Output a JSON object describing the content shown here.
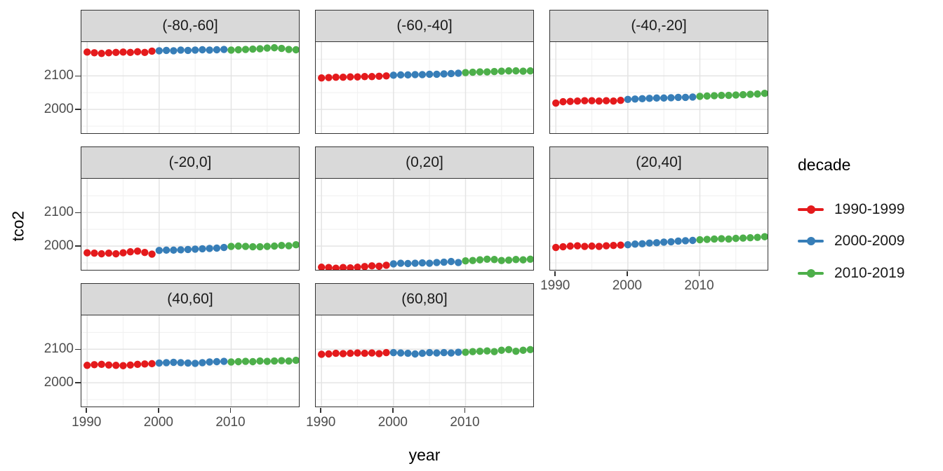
{
  "figure": {
    "x_axis_title": "year",
    "y_axis_title": "tco2",
    "x_tick_labels": [
      "1990",
      "2000",
      "2010"
    ],
    "y_tick_labels": [
      "2100",
      "2000"
    ]
  },
  "legend": {
    "title": "decade",
    "items": [
      {
        "label": "1990-1999",
        "color": "#E41A1C"
      },
      {
        "label": "2000-2009",
        "color": "#377EB8"
      },
      {
        "label": "2010-2019",
        "color": "#4DAF4A"
      }
    ]
  },
  "chart_data": {
    "type": "scatter",
    "title": "",
    "xlabel": "year",
    "ylabel": "tco2",
    "faceted_by": "latitude band",
    "legend_position": "right",
    "grid": true,
    "xlim": [
      1989.2,
      2019.6
    ],
    "ylim": [
      1925,
      2201
    ],
    "x_major_gridlines": [
      1990,
      2000,
      2010
    ],
    "x_minor_gridlines": [
      1995,
      2005,
      2015
    ],
    "y_major_gridlines": [
      2000,
      2100
    ],
    "y_minor_gridlines": [
      1950,
      2050,
      2150
    ],
    "x_tick_values": [
      1990,
      2000,
      2010
    ],
    "y_tick_values": [
      2100,
      2000
    ],
    "series_colors": {
      "1990-1999": "#E41A1C",
      "2000-2009": "#377EB8",
      "2010-2019": "#4DAF4A"
    },
    "years": [
      1990,
      1991,
      1992,
      1993,
      1994,
      1995,
      1996,
      1997,
      1998,
      1999,
      2000,
      2001,
      2002,
      2003,
      2004,
      2005,
      2006,
      2007,
      2008,
      2009,
      2010,
      2011,
      2012,
      2013,
      2014,
      2015,
      2016,
      2017,
      2018,
      2019
    ],
    "facets": [
      {
        "label": "(-80,-60]",
        "values": [
          2171,
          2169,
          2167,
          2169,
          2170,
          2171,
          2170,
          2172,
          2170,
          2174,
          2175,
          2176,
          2175,
          2177,
          2176,
          2177,
          2178,
          2177,
          2178,
          2179,
          2177,
          2178,
          2179,
          2180,
          2181,
          2183,
          2184,
          2182,
          2179,
          2178
        ]
      },
      {
        "label": "(-60,-40]",
        "values": [
          2094,
          2095,
          2096,
          2096,
          2097,
          2097,
          2098,
          2098,
          2099,
          2100,
          2102,
          2103,
          2103,
          2104,
          2104,
          2105,
          2105,
          2106,
          2107,
          2108,
          2110,
          2111,
          2112,
          2112,
          2113,
          2114,
          2115,
          2115,
          2114,
          2115
        ]
      },
      {
        "label": "(-40,-20]",
        "values": [
          2019,
          2023,
          2024,
          2025,
          2026,
          2026,
          2025,
          2026,
          2025,
          2027,
          2030,
          2031,
          2032,
          2033,
          2034,
          2034,
          2035,
          2036,
          2036,
          2037,
          2039,
          2040,
          2041,
          2042,
          2042,
          2043,
          2044,
          2045,
          2046,
          2048
        ]
      },
      {
        "label": "(-20,0]",
        "values": [
          1980,
          1979,
          1977,
          1979,
          1977,
          1980,
          1983,
          1985,
          1981,
          1976,
          1987,
          1988,
          1988,
          1989,
          1990,
          1991,
          1992,
          1993,
          1994,
          1996,
          1999,
          2000,
          1999,
          1998,
          1998,
          1999,
          2000,
          2002,
          2001,
          2004
        ]
      },
      {
        "label": "(0,20]",
        "values": [
          1937,
          1936,
          1934,
          1936,
          1935,
          1937,
          1939,
          1941,
          1940,
          1943,
          1947,
          1949,
          1948,
          1949,
          1950,
          1949,
          1951,
          1952,
          1954,
          1951,
          1956,
          1957,
          1959,
          1961,
          1960,
          1957,
          1958,
          1960,
          1959,
          1961
        ]
      },
      {
        "label": "(20,40]",
        "values": [
          1996,
          1998,
          2000,
          2001,
          1999,
          2000,
          1999,
          2001,
          2002,
          2003,
          2004,
          2006,
          2007,
          2009,
          2010,
          2012,
          2013,
          2015,
          2016,
          2017,
          2019,
          2020,
          2021,
          2022,
          2021,
          2023,
          2024,
          2025,
          2026,
          2028
        ]
      },
      {
        "label": "(40,60]",
        "values": [
          2052,
          2054,
          2055,
          2053,
          2052,
          2051,
          2053,
          2055,
          2056,
          2057,
          2059,
          2060,
          2061,
          2060,
          2059,
          2058,
          2060,
          2062,
          2063,
          2064,
          2062,
          2063,
          2064,
          2063,
          2065,
          2064,
          2065,
          2066,
          2065,
          2067
        ]
      },
      {
        "label": "(60,80]",
        "values": [
          2085,
          2086,
          2088,
          2087,
          2088,
          2089,
          2088,
          2089,
          2087,
          2090,
          2090,
          2089,
          2088,
          2086,
          2088,
          2090,
          2089,
          2090,
          2089,
          2091,
          2091,
          2093,
          2094,
          2095,
          2093,
          2097,
          2099,
          2094,
          2097,
          2099
        ]
      }
    ]
  }
}
